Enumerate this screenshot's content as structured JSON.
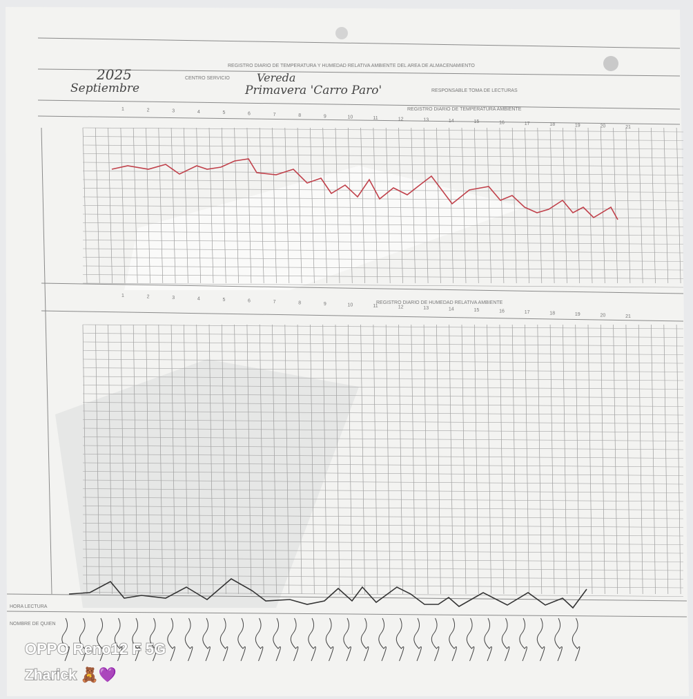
{
  "form": {
    "header": "REGISTRO DIARIO DE TEMPERATURA Y HUMEDAD RELATIVA AMBIENTE DEL AREA DE ALMACENAMIENTO",
    "center_label": "CENTRO SERVICIO",
    "responsible_label": "RESPONSABLE TOMA DE LECTURAS",
    "section_temperature": "REGISTRO DIARIO DE TEMPERATURA AMBIENTE",
    "section_humidity": "REGISTRO DIARIO DE HUMEDAD RELATIVA AMBIENTE",
    "reading_time_label": "HORA LECTURA",
    "reader_label": "NOMBRE DE QUIEN",
    "days": [
      1,
      2,
      3,
      4,
      5,
      6,
      7,
      8,
      9,
      10,
      11,
      12,
      13,
      14,
      15,
      16,
      17,
      18,
      19,
      20,
      21
    ]
  },
  "handwriting": {
    "year": "2025",
    "month": "Septiembre",
    "place_label": "Vereda",
    "place": "Primavera 'Carro Paro'"
  },
  "watermark": {
    "device": "OPPO Reno12 F 5G",
    "user": "Zharick 🧸💜"
  }
}
